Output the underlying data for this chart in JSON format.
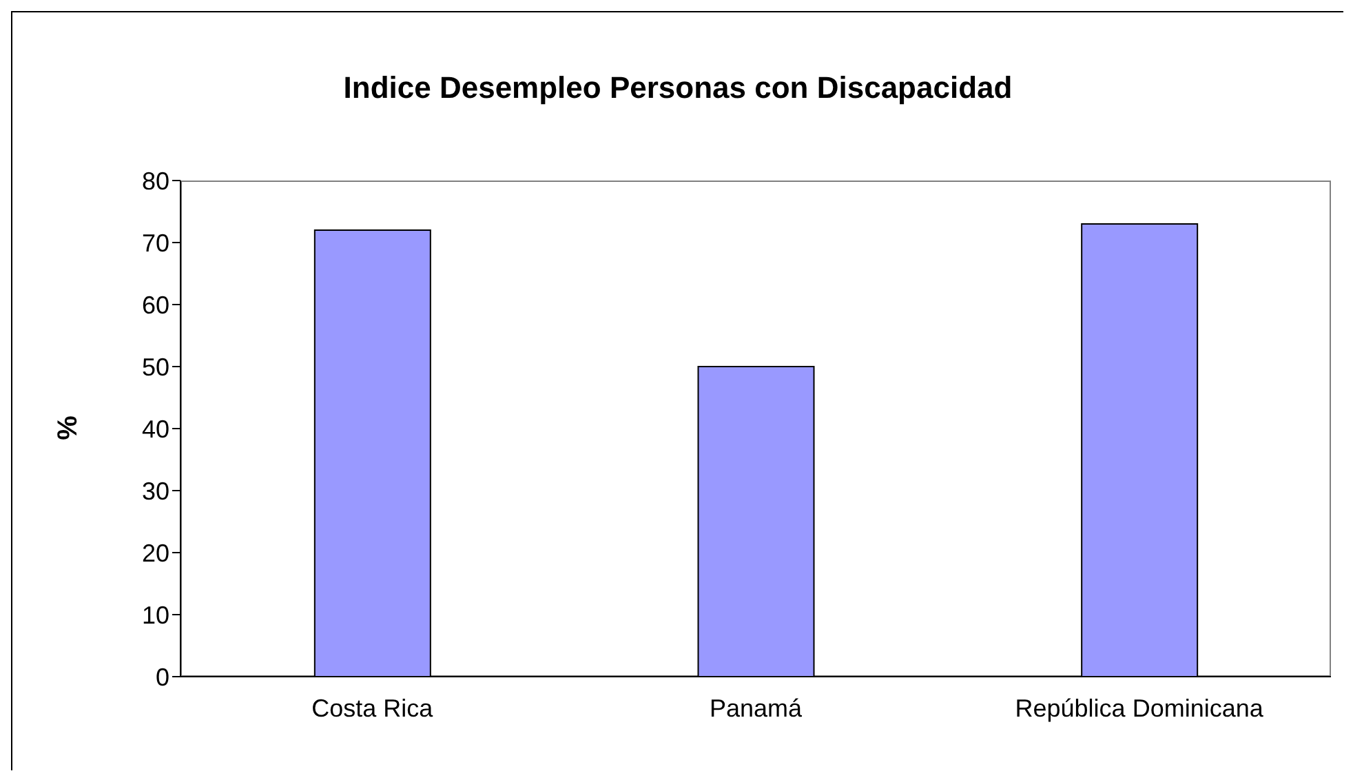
{
  "chart_data": {
    "type": "bar",
    "title": "Indice Desempleo Personas con Discapacidad",
    "ylabel": "%",
    "categories": [
      "Costa Rica",
      "Panamá",
      "República Dominicana"
    ],
    "values": [
      72,
      50,
      73
    ],
    "color": "#9999ff",
    "ylim": [
      0,
      80
    ],
    "yticks": [
      0,
      10,
      20,
      30,
      40,
      50,
      60,
      70,
      80
    ]
  }
}
